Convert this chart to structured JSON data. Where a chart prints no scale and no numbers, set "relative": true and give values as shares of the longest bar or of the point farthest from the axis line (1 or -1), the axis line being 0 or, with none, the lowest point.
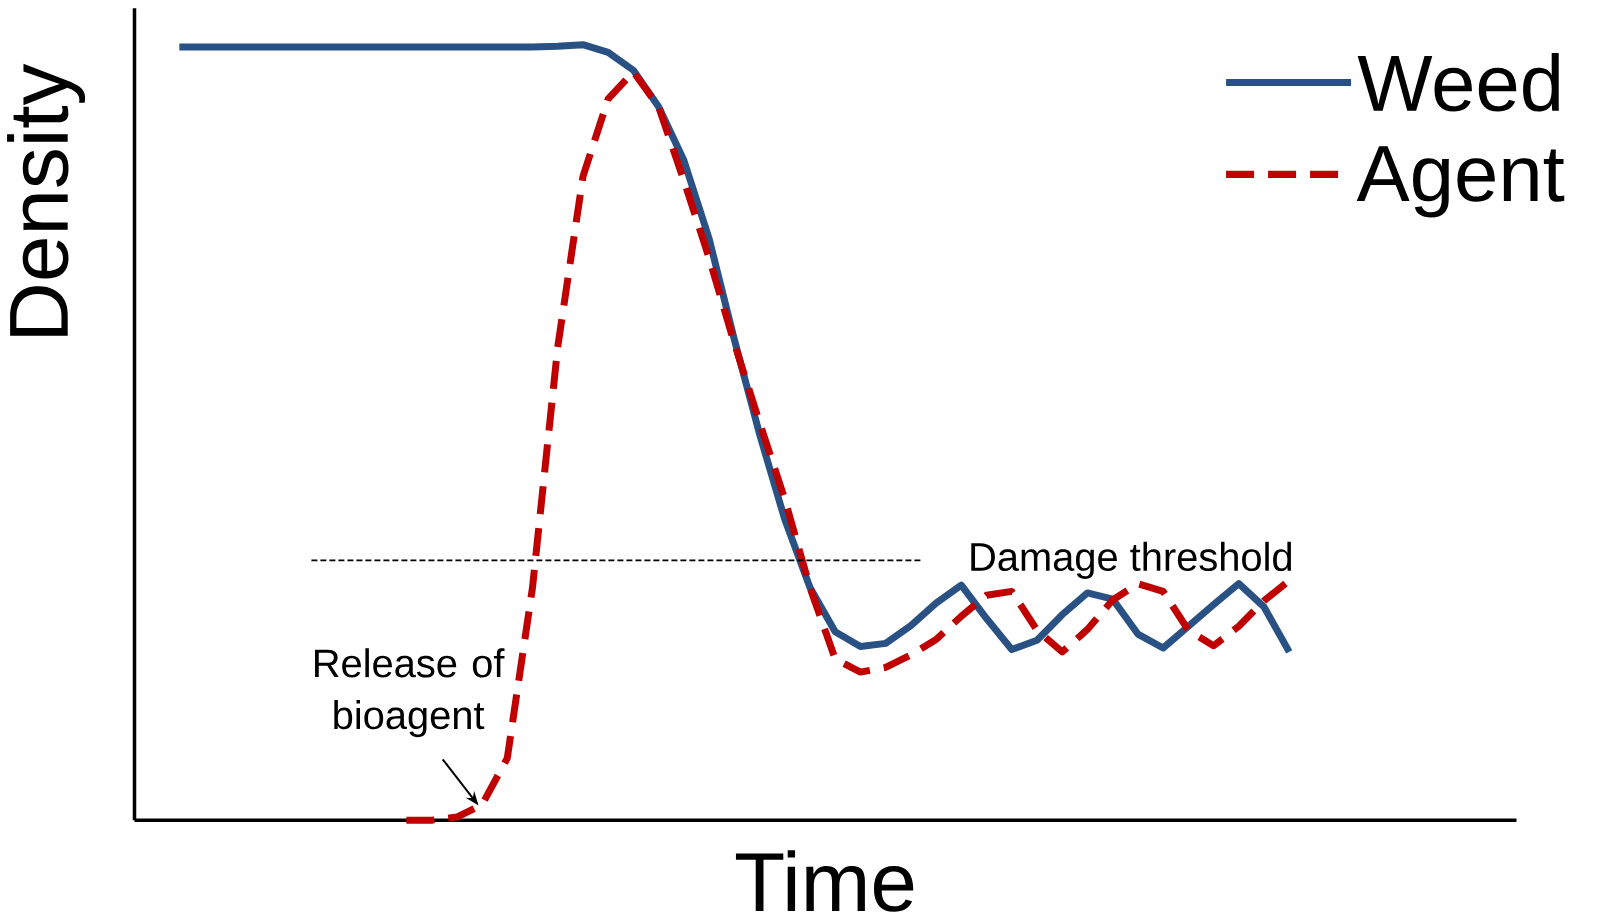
{
  "chart_data": {
    "type": "line",
    "xlabel": "Time",
    "ylabel": "Density",
    "relative": true,
    "tick_labels": false,
    "legend": "top right",
    "marker": "none",
    "categories": [
      null,
      null,
      null,
      null,
      null,
      null,
      null,
      null,
      null,
      null,
      null,
      null,
      null,
      null,
      null,
      null,
      null,
      null,
      null,
      null,
      null,
      null,
      null,
      null,
      null,
      null,
      null,
      null,
      null,
      null,
      null,
      null,
      null,
      null,
      null,
      null,
      null,
      null,
      null,
      null,
      null,
      null,
      null,
      null,
      null
    ],
    "series": [
      {
        "name": "Weed",
        "color": "#2a5184",
        "line_style": "solid",
        "values": [
          0.997,
          0.997,
          0.997,
          0.997,
          0.997,
          0.997,
          0.997,
          0.997,
          0.997,
          0.997,
          0.997,
          0.997,
          0.997,
          0.997,
          0.997,
          0.998,
          1.0,
          0.99,
          0.967,
          0.92,
          0.851,
          0.75,
          0.62,
          0.498,
          0.388,
          0.3,
          0.243,
          0.224,
          0.228,
          0.251,
          0.28,
          0.303,
          0.26,
          0.22,
          0.232,
          0.265,
          0.293,
          0.285,
          0.24,
          0.222,
          0.25,
          0.278,
          0.305,
          0.275,
          0.217
        ]
      },
      {
        "name": "Agent",
        "color": "#c00000",
        "line_style": "dashed",
        "values": [
          null,
          null,
          null,
          null,
          null,
          null,
          null,
          null,
          null,
          0,
          0,
          0.004,
          0.02,
          0.08,
          0.3,
          0.61,
          0.83,
          0.93,
          0.965,
          0.92,
          0.825,
          0.725,
          0.615,
          0.513,
          0.414,
          0.3,
          0.208,
          0.191,
          0.197,
          0.213,
          0.233,
          0.263,
          0.29,
          0.295,
          0.245,
          0.217,
          0.246,
          0.284,
          0.305,
          0.295,
          0.245,
          0.225,
          0.25,
          0.283,
          0.309
        ]
      }
    ],
    "ref_lines": [
      {
        "axis": "y",
        "value": 0.335,
        "label": "Damage threshold",
        "color": "#000000",
        "line_style": "dashed"
      }
    ],
    "annotations": [
      "Release of bioagent"
    ]
  }
}
